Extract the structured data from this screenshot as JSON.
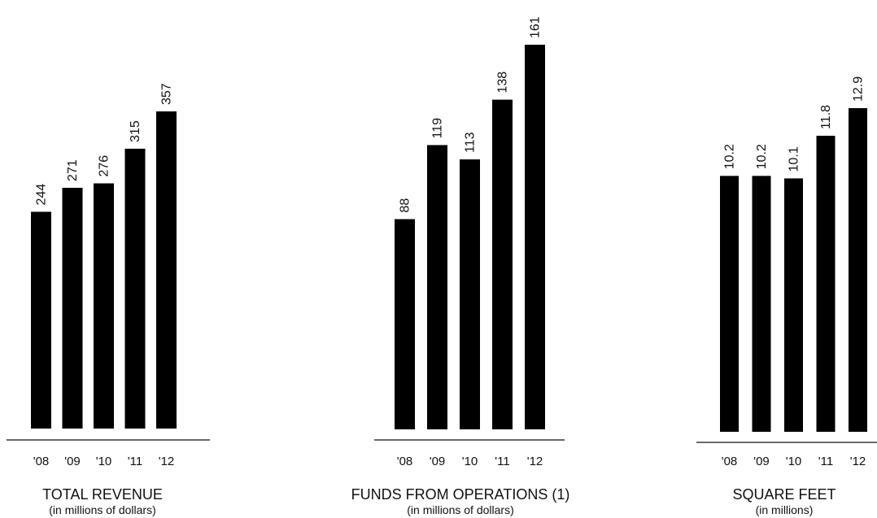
{
  "chart_data": [
    {
      "type": "bar",
      "categories": [
        "'08",
        "'09",
        "'10",
        "'11",
        "'12"
      ],
      "values": [
        244,
        271,
        276,
        315,
        357
      ],
      "value_labels": [
        "244",
        "271",
        "276",
        "315",
        "357"
      ],
      "title": "TOTAL REVENUE",
      "subtitle": "(in millions of dollars)",
      "xlabel": "",
      "ylabel": "",
      "grid": false,
      "bar_color": "#000000"
    },
    {
      "type": "bar",
      "categories": [
        "'08",
        "'09",
        "'10",
        "'11",
        "'12"
      ],
      "values": [
        88,
        119,
        113,
        138,
        161
      ],
      "value_labels": [
        "88",
        "119",
        "113",
        "138",
        "161"
      ],
      "title": "FUNDS FROM OPERATIONS (1)",
      "subtitle": "(in millions of dollars)",
      "xlabel": "",
      "ylabel": "",
      "grid": false,
      "bar_color": "#000000"
    },
    {
      "type": "bar",
      "categories": [
        "'08",
        "'09",
        "'10",
        "'11",
        "'12"
      ],
      "values": [
        10.2,
        10.2,
        10.1,
        11.8,
        12.9
      ],
      "value_labels": [
        "10.2",
        "10.2",
        "10.1",
        "11.8",
        "12.9"
      ],
      "title": "SQUARE FEET",
      "subtitle": "(in millions)",
      "xlabel": "",
      "ylabel": "",
      "grid": false,
      "bar_color": "#000000"
    }
  ]
}
